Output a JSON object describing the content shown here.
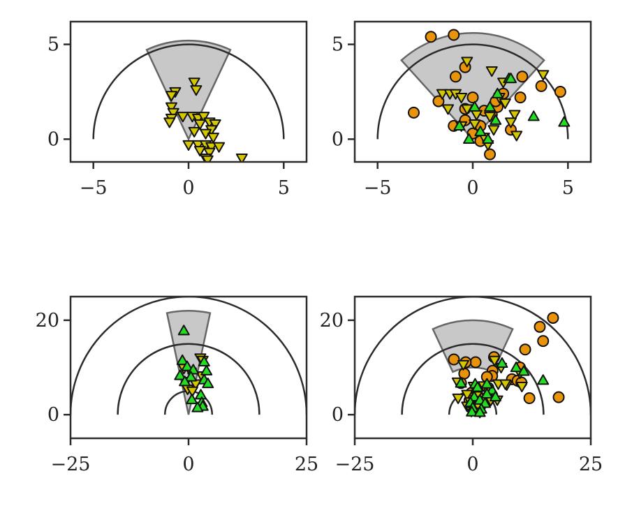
{
  "chart_data": [
    {
      "type": "scatter",
      "title": "",
      "xlabel": "",
      "ylabel": "",
      "xlim": [
        -6.2,
        6.2
      ],
      "ylim": [
        -1.2,
        6.2
      ],
      "xticks": [
        -5,
        0,
        5
      ],
      "xtick_labels": [
        "−5",
        "0",
        "5"
      ],
      "yticks": [
        0,
        5
      ],
      "ytick_labels": [
        "0",
        "5"
      ],
      "grid": false,
      "legend": "none",
      "rings": [
        5
      ],
      "wedge": {
        "r_inner": 0,
        "r_outer": 5.2,
        "half_angle_deg": 25
      },
      "series": [
        {
          "marker": "triangle-down",
          "color": "#d4c700",
          "points": [
            [
              -0.7,
              2.5
            ],
            [
              -0.9,
              2.3
            ],
            [
              0.3,
              3.0
            ],
            [
              0.4,
              2.6
            ],
            [
              -0.9,
              1.7
            ],
            [
              -0.8,
              1.4
            ],
            [
              -0.9,
              1.1
            ],
            [
              -1.0,
              0.9
            ],
            [
              -0.3,
              1.2
            ],
            [
              0.2,
              1.2
            ],
            [
              0.5,
              1.1
            ],
            [
              0.8,
              1.2
            ],
            [
              0.6,
              0.8
            ],
            [
              0.3,
              0.4
            ],
            [
              1.1,
              0.9
            ],
            [
              1.4,
              0.8
            ],
            [
              1.2,
              0.5
            ],
            [
              0.9,
              0.3
            ],
            [
              1.3,
              0.1
            ],
            [
              0.0,
              -0.3
            ],
            [
              0.5,
              -0.3
            ],
            [
              0.9,
              -0.3
            ],
            [
              1.2,
              -0.4
            ],
            [
              1.6,
              -0.4
            ],
            [
              0.6,
              -0.6
            ],
            [
              1.1,
              -0.7
            ],
            [
              0.9,
              -1.0
            ],
            [
              2.8,
              -1.0
            ],
            [
              1.0,
              -1.1
            ]
          ]
        }
      ]
    },
    {
      "type": "scatter",
      "title": "",
      "xlabel": "",
      "ylabel": "",
      "xlim": [
        -6.2,
        6.2
      ],
      "ylim": [
        -1.2,
        6.2
      ],
      "xticks": [
        -5,
        0,
        5
      ],
      "xtick_labels": [
        "−5",
        "0",
        "5"
      ],
      "yticks": [
        0,
        5
      ],
      "ytick_labels": [
        "0",
        "5"
      ],
      "grid": false,
      "legend": "none",
      "rings": [
        5
      ],
      "wedge": {
        "r_inner": 0,
        "r_outer": 5.6,
        "half_angle_deg": 42
      },
      "series": [
        {
          "marker": "circle",
          "color": "#e8930a",
          "points": [
            [
              -2.2,
              5.4
            ],
            [
              -1.0,
              5.5
            ],
            [
              -0.4,
              3.8
            ],
            [
              -0.9,
              3.3
            ],
            [
              -3.1,
              1.4
            ],
            [
              -1.8,
              2.0
            ],
            [
              -1.0,
              0.7
            ],
            [
              -0.4,
              1.0
            ],
            [
              0.0,
              0.3
            ],
            [
              0.4,
              0.7
            ],
            [
              1.0,
              1.3
            ],
            [
              1.3,
              1.7
            ],
            [
              1.6,
              2.4
            ],
            [
              1.2,
              2.0
            ],
            [
              2.6,
              3.3
            ],
            [
              3.6,
              2.8
            ],
            [
              4.6,
              2.5
            ],
            [
              2.5,
              2.2
            ],
            [
              2.0,
              0.5
            ],
            [
              0.4,
              -0.1
            ],
            [
              0.9,
              -0.8
            ],
            [
              0.0,
              2.2
            ],
            [
              0.6,
              1.5
            ],
            [
              -0.4,
              1.6
            ]
          ]
        },
        {
          "marker": "triangle-down",
          "color": "#d4c700",
          "points": [
            [
              -0.3,
              4.1
            ],
            [
              1.0,
              3.6
            ],
            [
              1.6,
              3.0
            ],
            [
              3.7,
              3.4
            ],
            [
              -1.6,
              2.4
            ],
            [
              -1.2,
              2.4
            ],
            [
              -0.9,
              2.4
            ],
            [
              -0.6,
              2.2
            ],
            [
              -1.3,
              1.6
            ],
            [
              -0.3,
              1.6
            ],
            [
              0.2,
              1.3
            ],
            [
              0.9,
              1.2
            ],
            [
              2.2,
              1.3
            ],
            [
              2.0,
              0.9
            ],
            [
              2.3,
              0.2
            ],
            [
              1.1,
              0.5
            ],
            [
              0.6,
              0.1
            ],
            [
              -0.6,
              0.7
            ],
            [
              1.4,
              2.2
            ],
            [
              1.7,
              1.9
            ],
            [
              0.1,
              0.8
            ],
            [
              0.8,
              -0.3
            ]
          ]
        },
        {
          "marker": "triangle-up",
          "color": "#22dd22",
          "points": [
            [
              1.9,
              3.2
            ],
            [
              1.3,
              2.4
            ],
            [
              2.0,
              3.2
            ],
            [
              3.2,
              1.2
            ],
            [
              4.8,
              0.9
            ],
            [
              0.1,
              1.7
            ],
            [
              -0.7,
              0.7
            ],
            [
              -0.2,
              0.0
            ],
            [
              0.4,
              0.4
            ],
            [
              0.8,
              0.0
            ],
            [
              1.2,
              1.0
            ],
            [
              0.9,
              1.7
            ]
          ]
        }
      ]
    },
    {
      "type": "scatter",
      "title": "",
      "xlabel": "",
      "ylabel": "",
      "xlim": [
        -25,
        25
      ],
      "ylim": [
        -5,
        25
      ],
      "xticks": [
        -25,
        0,
        25
      ],
      "xtick_labels": [
        "−25",
        "0",
        "25"
      ],
      "yticks": [
        0,
        20
      ],
      "ytick_labels": [
        "0",
        "20"
      ],
      "grid": false,
      "legend": "none",
      "rings": [
        5,
        15,
        25
      ],
      "wedge": {
        "r_inner": 0,
        "r_outer": 22,
        "half_angle_deg": 12
      },
      "series": [
        {
          "marker": "triangle-down",
          "color": "#d4c700",
          "points": [
            [
              2.5,
              12.0
            ],
            [
              3.0,
              11.5
            ],
            [
              -1.0,
              9.8
            ],
            [
              0.5,
              9.0
            ],
            [
              2.8,
              8.2
            ],
            [
              -0.5,
              7.0
            ],
            [
              1.5,
              6.5
            ],
            [
              -0.2,
              5.4
            ],
            [
              0.8,
              5.0
            ]
          ]
        },
        {
          "marker": "triangle-up",
          "color": "#22dd22",
          "points": [
            [
              -1.0,
              17.8
            ],
            [
              -1.3,
              11.5
            ],
            [
              3.3,
              11.2
            ],
            [
              -0.3,
              10.2
            ],
            [
              1.0,
              9.5
            ],
            [
              3.8,
              9.3
            ],
            [
              -1.8,
              8.3
            ],
            [
              0.5,
              8.0
            ],
            [
              3.3,
              7.4
            ],
            [
              -0.8,
              7.0
            ],
            [
              4.1,
              6.6
            ],
            [
              2.6,
              4.2
            ],
            [
              0.7,
              3.2
            ],
            [
              2.8,
              2.6
            ],
            [
              3.0,
              1.8
            ],
            [
              1.9,
              1.5
            ]
          ]
        }
      ]
    },
    {
      "type": "scatter",
      "title": "",
      "xlabel": "",
      "ylabel": "",
      "xlim": [
        -25,
        25
      ],
      "ylim": [
        -5,
        25
      ],
      "xticks": [
        -25,
        0,
        25
      ],
      "xtick_labels": [
        "−25",
        "0",
        "25"
      ],
      "yticks": [
        0,
        20
      ],
      "ytick_labels": [
        "0",
        "20"
      ],
      "grid": false,
      "legend": "none",
      "rings": [
        5,
        15,
        25
      ],
      "wedge": {
        "r_inner": 10,
        "r_outer": 20,
        "half_angle_deg": 25
      },
      "series": [
        {
          "marker": "circle",
          "color": "#e8930a",
          "points": [
            [
              17.0,
              20.5
            ],
            [
              14.2,
              18.6
            ],
            [
              14.9,
              15.6
            ],
            [
              11.1,
              13.8
            ],
            [
              -4.0,
              11.7
            ],
            [
              0.6,
              11.1
            ],
            [
              4.5,
              12.2
            ],
            [
              -1.5,
              11.1
            ],
            [
              4.2,
              9.3
            ],
            [
              -1.8,
              8.7
            ],
            [
              4.1,
              8.2
            ],
            [
              3.0,
              8.0
            ],
            [
              10.0,
              10.0
            ],
            [
              8.3,
              7.5
            ],
            [
              9.5,
              7.2
            ],
            [
              10.3,
              6.8
            ],
            [
              3.3,
              5.7
            ],
            [
              -2.5,
              6.7
            ],
            [
              -0.3,
              4.6
            ],
            [
              1.1,
              3.7
            ],
            [
              3.4,
              3.2
            ],
            [
              -0.7,
              3.0
            ],
            [
              12.0,
              3.5
            ],
            [
              18.2,
              3.7
            ]
          ]
        },
        {
          "marker": "triangle-down",
          "color": "#d4c700",
          "points": [
            [
              -2.0,
              10.6
            ],
            [
              4.6,
              11.5
            ],
            [
              6.0,
              10.0
            ],
            [
              -3.2,
              6.9
            ],
            [
              0.2,
              6.0
            ],
            [
              2.3,
              6.1
            ],
            [
              5.4,
              6.5
            ],
            [
              7.2,
              6.3
            ],
            [
              10.0,
              8.8
            ],
            [
              -1.2,
              4.3
            ],
            [
              0.8,
              4.0
            ],
            [
              -3.1,
              3.5
            ],
            [
              -0.5,
              2.7
            ],
            [
              1.8,
              3.0
            ],
            [
              3.8,
              3.0
            ],
            [
              -1.2,
              1.8
            ],
            [
              0.9,
              1.5
            ],
            [
              -0.3,
              0.7
            ],
            [
              1.5,
              0.5
            ],
            [
              5.2,
              3.1
            ],
            [
              6.9,
              6.5
            ],
            [
              10.4,
              6.0
            ]
          ]
        },
        {
          "marker": "triangle-up",
          "color": "#22dd22",
          "points": [
            [
              6.2,
              10.9
            ],
            [
              9.2,
              10.0
            ],
            [
              10.8,
              9.2
            ],
            [
              14.9,
              7.3
            ],
            [
              -2.5,
              6.7
            ],
            [
              0.5,
              6.5
            ],
            [
              1.0,
              5.8
            ],
            [
              4.1,
              5.2
            ],
            [
              3.0,
              4.4
            ],
            [
              0.3,
              3.8
            ],
            [
              1.5,
              3.1
            ],
            [
              -0.5,
              2.6
            ],
            [
              2.6,
              2.4
            ],
            [
              0.0,
              1.5
            ],
            [
              1.8,
              1.2
            ],
            [
              -0.2,
              0.6
            ],
            [
              1.5,
              0.5
            ],
            [
              4.8,
              3.8
            ],
            [
              3.0,
              6.5
            ]
          ]
        }
      ]
    }
  ]
}
